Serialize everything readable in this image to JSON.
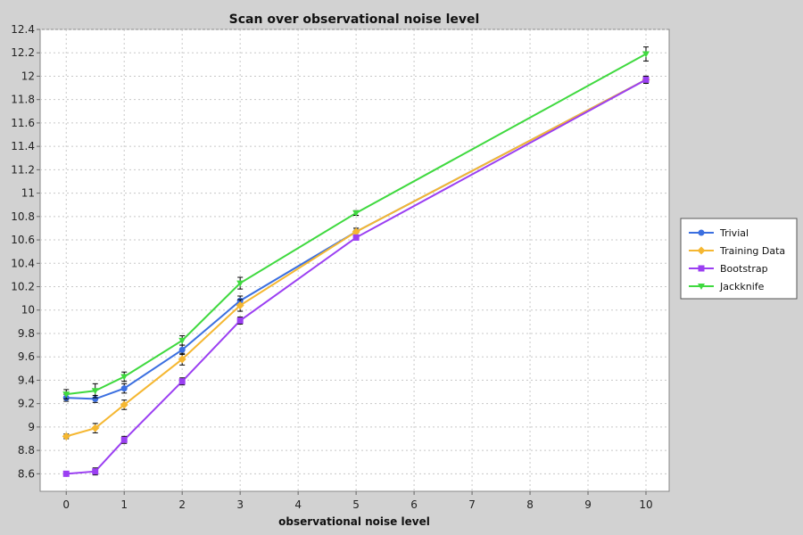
{
  "chart_data": {
    "type": "line",
    "title": "Scan over observational noise level",
    "xlabel": "observational noise level",
    "ylabel": "",
    "xlim": [
      -0.45,
      10.4
    ],
    "ylim": [
      8.45,
      12.4
    ],
    "x_ticks": [
      0,
      1,
      2,
      3,
      4,
      5,
      6,
      7,
      8,
      9,
      10
    ],
    "y_ticks": [
      8.6,
      8.8,
      9,
      9.2,
      9.4,
      9.6,
      9.8,
      10,
      10.2,
      10.4,
      10.6,
      10.8,
      11,
      11.2,
      11.4,
      11.6,
      11.8,
      12,
      12.2,
      12.4
    ],
    "grid": true,
    "legend_position": "right",
    "x": [
      0,
      0.5,
      1,
      2,
      3,
      5,
      10
    ],
    "series": [
      {
        "name": "Trivial",
        "color": "#3b6fe0",
        "marker": "circle",
        "values": [
          9.25,
          9.24,
          9.33,
          9.66,
          10.08,
          10.67,
          11.97
        ],
        "errors": [
          0.03,
          0.03,
          0.04,
          0.04,
          0.04,
          0.03,
          0.03
        ]
      },
      {
        "name": "Training Data",
        "color": "#f5b731",
        "marker": "diamond",
        "values": [
          8.92,
          8.99,
          9.19,
          9.58,
          10.04,
          10.67,
          11.97
        ],
        "errors": [
          0.02,
          0.04,
          0.04,
          0.05,
          0.05,
          0.03,
          0.03
        ]
      },
      {
        "name": "Bootstrap",
        "color": "#9b3ff2",
        "marker": "square",
        "values": [
          8.6,
          8.62,
          8.89,
          9.39,
          9.91,
          10.62,
          11.97
        ],
        "errors": [
          0.01,
          0.03,
          0.03,
          0.03,
          0.03,
          0.02,
          0.03
        ]
      },
      {
        "name": "Jackknife",
        "color": "#3fd93f",
        "marker": "triangle-down",
        "values": [
          9.28,
          9.31,
          9.43,
          9.74,
          10.23,
          10.83,
          12.19
        ],
        "errors": [
          0.04,
          0.06,
          0.04,
          0.04,
          0.05,
          0.02,
          0.06
        ]
      }
    ]
  }
}
